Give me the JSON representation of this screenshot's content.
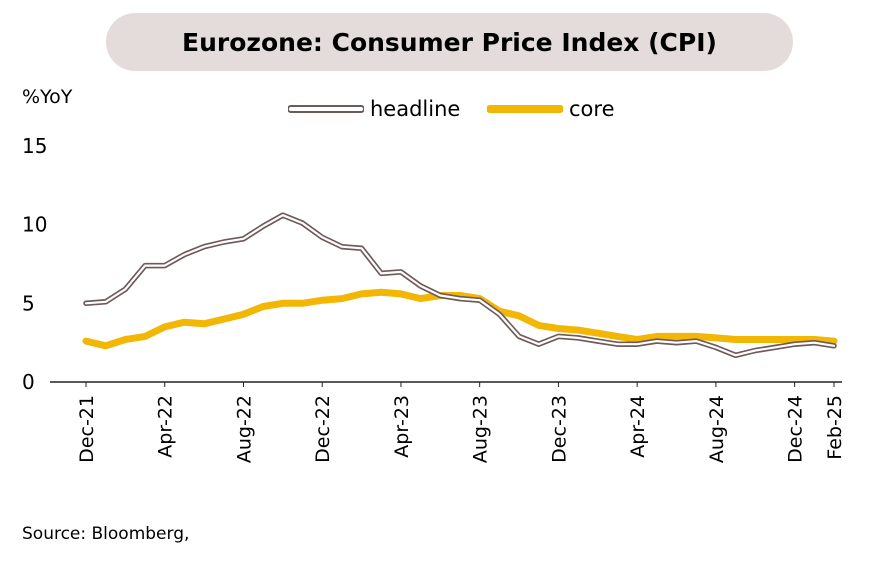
{
  "title": "Eurozone: Consumer Price Index (CPI)",
  "unit_label": "%YoY",
  "source": "Source: Bloomberg,",
  "colors": {
    "headline": "#6e5a5a",
    "core": "#f2b705",
    "title_bg": "#e3dcdb",
    "axis": "#222222"
  },
  "legend": {
    "headline": "headline",
    "core": "core"
  },
  "chart_data": {
    "type": "line",
    "x_start": "Dec-21",
    "x_end": "Feb-25",
    "tick_labels": [
      "Dec-21",
      "Apr-22",
      "Aug-22",
      "Dec-22",
      "Apr-23",
      "Aug-23",
      "Dec-23",
      "Apr-24",
      "Aug-24",
      "Dec-24",
      "Feb-25"
    ],
    "yticks": [
      "15",
      "10",
      "5",
      "0"
    ],
    "ylim": [
      0,
      15
    ],
    "series": [
      {
        "name": "headline",
        "values": [
          5.0,
          5.1,
          5.9,
          7.4,
          7.4,
          8.1,
          8.6,
          8.9,
          9.1,
          9.9,
          10.6,
          10.1,
          9.2,
          8.6,
          8.5,
          6.9,
          7.0,
          6.1,
          5.5,
          5.3,
          5.2,
          4.3,
          2.9,
          2.4,
          2.9,
          2.8,
          2.6,
          2.4,
          2.4,
          2.6,
          2.5,
          2.6,
          2.2,
          1.7,
          2.0,
          2.2,
          2.4,
          2.5,
          2.3
        ],
        "style": "outlined"
      },
      {
        "name": "core",
        "values": [
          2.6,
          2.3,
          2.7,
          2.9,
          3.5,
          3.8,
          3.7,
          4.0,
          4.3,
          4.8,
          5.0,
          5.0,
          5.2,
          5.3,
          5.6,
          5.7,
          5.6,
          5.3,
          5.5,
          5.5,
          5.3,
          4.5,
          4.2,
          3.6,
          3.4,
          3.3,
          3.1,
          2.9,
          2.7,
          2.9,
          2.9,
          2.9,
          2.8,
          2.7,
          2.7,
          2.7,
          2.7,
          2.7,
          2.6
        ]
      }
    ]
  }
}
